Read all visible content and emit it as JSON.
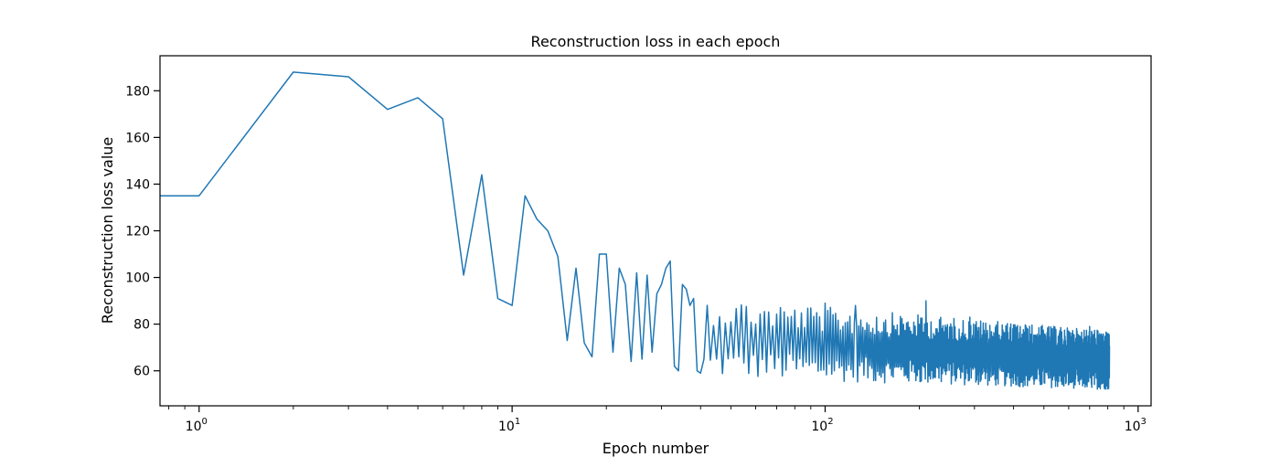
{
  "chart_data": {
    "type": "line",
    "title": "Reconstruction loss in each epoch",
    "xlabel": "Epoch number",
    "ylabel": "Reconstruction loss value",
    "xscale": "log",
    "xlim": [
      0.75,
      1100
    ],
    "ylim": [
      45,
      195
    ],
    "grid": false,
    "legend": "none",
    "line_color": "#1f77b4",
    "x_ticks": [
      {
        "base": "10",
        "exp": "0",
        "value": 1
      },
      {
        "base": "10",
        "exp": "1",
        "value": 10
      },
      {
        "base": "10",
        "exp": "2",
        "value": 100
      },
      {
        "base": "10",
        "exp": "3",
        "value": 1000
      }
    ],
    "y_ticks": [
      "60",
      "80",
      "100",
      "120",
      "140",
      "160",
      "180"
    ],
    "series": [
      {
        "x": [
          0.75,
          1,
          2,
          3,
          4,
          5,
          6,
          7,
          8,
          9,
          10,
          11,
          12,
          13,
          14,
          15,
          16,
          17,
          18,
          19,
          20,
          21,
          22,
          23,
          24,
          25,
          26,
          27,
          28,
          29,
          30,
          31,
          32,
          33,
          34,
          35,
          36,
          37,
          38,
          39,
          40
        ],
        "y": [
          135,
          135,
          188,
          186,
          172,
          177,
          168,
          101,
          144,
          91,
          88,
          135,
          125,
          120,
          109,
          73,
          104,
          72,
          66,
          110,
          110,
          68,
          104,
          97,
          64,
          102,
          65,
          101,
          68,
          93,
          97,
          104,
          107,
          62,
          60,
          97,
          95,
          88,
          91,
          60,
          59
        ]
      }
    ],
    "noisy_segment": {
      "x_start": 40,
      "x_end": 810,
      "y_min_start": 57,
      "y_min_end": 52,
      "y_max_start": 92,
      "y_max_end": 77,
      "upper_spikes": [
        [
          100,
          89
        ],
        [
          125,
          88
        ],
        [
          210,
          90
        ],
        [
          290,
          83
        ],
        [
          700,
          79
        ]
      ]
    }
  }
}
